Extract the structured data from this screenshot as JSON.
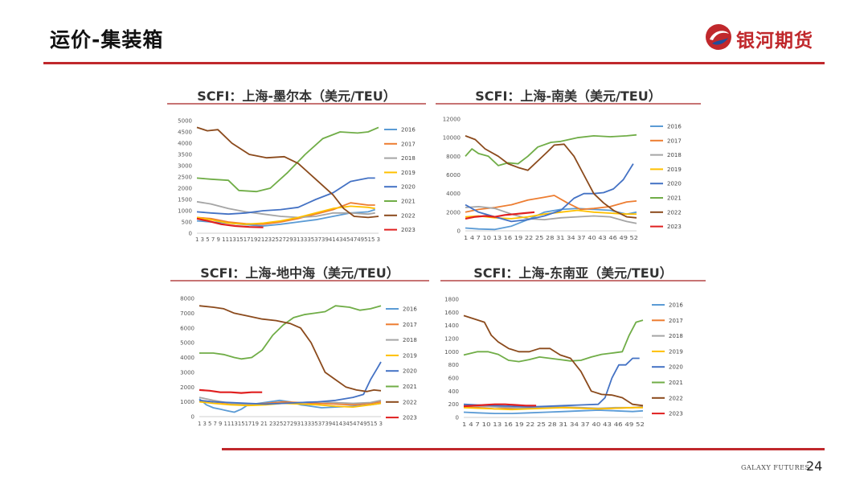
{
  "header": {
    "title": "运价-集装箱"
  },
  "logo": {
    "text": "银河期货"
  },
  "footer": {
    "brand": "GALAXY FUTURES",
    "page": "24"
  },
  "legend_colors": {
    "2016": "#5b9bd5",
    "2017": "#ed7d31",
    "2018": "#a5a5a5",
    "2019": "#ffc000",
    "2020": "#4472c4",
    "2021": "#70ad47",
    "2022": "#8b4a1c",
    "2023": "#e01f1f"
  },
  "chart_data": [
    {
      "type": "line",
      "title": "SCFI：上海-墨尔本（美元/TEU）",
      "ylim": [
        0,
        5000
      ],
      "yticks": [
        0,
        500,
        1000,
        1500,
        2000,
        2500,
        3000,
        3500,
        4000,
        4500,
        5000
      ],
      "x_range": [
        1,
        53
      ],
      "xtick_text": "1 3 5 7 9 1113151719212325272931333537394143454749515 3",
      "legend_position": "right",
      "series": [
        {
          "name": "2016",
          "x": [
            1,
            5,
            10,
            15,
            20,
            25,
            30,
            35,
            40,
            45,
            50,
            52
          ],
          "y": [
            550,
            500,
            450,
            380,
            320,
            400,
            500,
            600,
            750,
            900,
            950,
            1050
          ]
        },
        {
          "name": "2017",
          "x": [
            1,
            5,
            10,
            15,
            20,
            25,
            30,
            35,
            40,
            45,
            50,
            52
          ],
          "y": [
            700,
            650,
            500,
            420,
            400,
            500,
            650,
            850,
            1050,
            1350,
            1250,
            1250
          ]
        },
        {
          "name": "2018",
          "x": [
            1,
            5,
            10,
            15,
            20,
            25,
            30,
            35,
            40,
            45,
            50,
            52
          ],
          "y": [
            1400,
            1300,
            1100,
            950,
            850,
            750,
            700,
            750,
            900,
            900,
            850,
            900
          ]
        },
        {
          "name": "2019",
          "x": [
            1,
            5,
            10,
            15,
            20,
            25,
            30,
            35,
            40,
            45,
            50,
            52
          ],
          "y": [
            700,
            600,
            450,
            400,
            450,
            550,
            700,
            900,
            1100,
            1200,
            1150,
            1100
          ]
        },
        {
          "name": "2020",
          "x": [
            1,
            5,
            10,
            15,
            20,
            25,
            30,
            35,
            40,
            45,
            50,
            52
          ],
          "y": [
            950,
            900,
            850,
            900,
            1000,
            1050,
            1150,
            1500,
            1800,
            2300,
            2450,
            2450
          ]
        },
        {
          "name": "2021",
          "x": [
            1,
            5,
            10,
            13,
            18,
            22,
            27,
            32,
            37,
            42,
            47,
            50,
            53
          ],
          "y": [
            2450,
            2400,
            2350,
            1900,
            1850,
            2000,
            2700,
            3500,
            4200,
            4500,
            4450,
            4500,
            4700
          ]
        },
        {
          "name": "2022",
          "x": [
            1,
            4,
            7,
            11,
            16,
            21,
            26,
            30,
            35,
            40,
            43,
            46,
            50,
            53
          ],
          "y": [
            4700,
            4550,
            4600,
            4000,
            3500,
            3350,
            3400,
            3100,
            2400,
            1700,
            1100,
            750,
            700,
            750
          ]
        },
        {
          "name": "2023",
          "x": [
            1,
            4,
            8,
            12,
            16,
            20
          ],
          "y": [
            650,
            550,
            400,
            320,
            280,
            260
          ]
        }
      ]
    },
    {
      "type": "line",
      "title": "SCFI：上海-南美（美元/TEU）",
      "ylim": [
        0,
        12000
      ],
      "yticks": [
        0,
        2000,
        4000,
        6000,
        8000,
        10000,
        12000
      ],
      "x_range": [
        1,
        53
      ],
      "xtick_text": "1 4 7 10 13 16 19 22 25 28 31 34 37 40 43 46 49 52",
      "legend_position": "right",
      "series": [
        {
          "name": "2016",
          "x": [
            1,
            5,
            10,
            15,
            20,
            25,
            30,
            35,
            40,
            45,
            50,
            53
          ],
          "y": [
            300,
            200,
            150,
            500,
            1200,
            2000,
            2300,
            2400,
            2300,
            2200,
            1800,
            2000
          ]
        },
        {
          "name": "2017",
          "x": [
            1,
            5,
            10,
            15,
            20,
            25,
            28,
            32,
            36,
            40,
            45,
            50,
            53
          ],
          "y": [
            2000,
            2300,
            2500,
            2800,
            3300,
            3600,
            3800,
            3000,
            2300,
            2400,
            2600,
            3100,
            3200
          ]
        },
        {
          "name": "2018",
          "x": [
            1,
            5,
            10,
            15,
            20,
            25,
            30,
            35,
            40,
            45,
            50,
            53
          ],
          "y": [
            2500,
            2600,
            2400,
            1800,
            1300,
            1200,
            1400,
            1500,
            1600,
            1500,
            1000,
            800
          ]
        },
        {
          "name": "2019",
          "x": [
            1,
            5,
            10,
            15,
            20,
            25,
            30,
            35,
            40,
            45,
            50,
            53
          ],
          "y": [
            1500,
            1600,
            1400,
            1300,
            1500,
            1800,
            2000,
            2200,
            2000,
            1900,
            1800,
            1800
          ]
        },
        {
          "name": "2020",
          "x": [
            1,
            5,
            10,
            15,
            20,
            25,
            30,
            34,
            37,
            40,
            43,
            46,
            49,
            52
          ],
          "y": [
            2800,
            2000,
            1500,
            1000,
            1200,
            1600,
            2200,
            3500,
            4000,
            4000,
            4100,
            4500,
            5500,
            7200
          ]
        },
        {
          "name": "2021",
          "x": [
            1,
            3,
            5,
            8,
            11,
            14,
            17,
            20,
            23,
            27,
            30,
            35,
            40,
            45,
            50,
            53
          ],
          "y": [
            8000,
            8800,
            8300,
            8000,
            7000,
            7300,
            7200,
            8000,
            9000,
            9500,
            9600,
            10000,
            10200,
            10100,
            10200,
            10300
          ]
        },
        {
          "name": "2022",
          "x": [
            1,
            4,
            7,
            11,
            14,
            17,
            20,
            23,
            26,
            28,
            31,
            34,
            37,
            40,
            43,
            46,
            50,
            53
          ],
          "y": [
            10200,
            9800,
            8800,
            8000,
            7200,
            6800,
            6500,
            7500,
            8500,
            9200,
            9300,
            8000,
            6000,
            4000,
            3000,
            2200,
            1500,
            1400
          ]
        },
        {
          "name": "2023",
          "x": [
            1,
            4,
            7,
            10,
            13,
            16,
            19,
            22
          ],
          "y": [
            1300,
            1500,
            1600,
            1500,
            1700,
            1800,
            1900,
            2000
          ]
        }
      ]
    },
    {
      "type": "line",
      "title": "SCFI：上海-地中海（美元/TEU）",
      "ylim": [
        0,
        8000
      ],
      "yticks": [
        0,
        1000,
        2000,
        3000,
        4000,
        5000,
        6000,
        7000,
        8000
      ],
      "x_range": [
        1,
        53
      ],
      "xtick_text": "1 3 5 7 9 1113151719 21 2325272931333537394143454749515 3",
      "legend_position": "right",
      "series": [
        {
          "name": "2016",
          "x": [
            1,
            3,
            5,
            7,
            9,
            11,
            13,
            15,
            18,
            21,
            24,
            27,
            30,
            33,
            36,
            40,
            45,
            50,
            53
          ],
          "y": [
            1200,
            800,
            600,
            500,
            400,
            300,
            500,
            800,
            900,
            1000,
            1100,
            1000,
            800,
            700,
            600,
            650,
            700,
            800,
            900
          ]
        },
        {
          "name": "2017",
          "x": [
            1,
            5,
            10,
            15,
            20,
            25,
            30,
            35,
            40,
            45,
            50,
            53
          ],
          "y": [
            1100,
            1000,
            900,
            850,
            900,
            1000,
            950,
            900,
            850,
            800,
            900,
            1000
          ]
        },
        {
          "name": "2018",
          "x": [
            1,
            5,
            10,
            15,
            20,
            25,
            30,
            35,
            40,
            45,
            50,
            53
          ],
          "y": [
            1300,
            1100,
            900,
            800,
            850,
            900,
            950,
            1000,
            950,
            900,
            950,
            1100
          ]
        },
        {
          "name": "2019",
          "x": [
            1,
            5,
            10,
            15,
            20,
            25,
            30,
            35,
            40,
            45,
            50,
            53
          ],
          "y": [
            1000,
            900,
            800,
            750,
            800,
            900,
            850,
            800,
            700,
            650,
            800,
            900
          ]
        },
        {
          "name": "2020",
          "x": [
            1,
            5,
            10,
            15,
            20,
            25,
            30,
            35,
            40,
            45,
            48,
            50,
            52,
            53
          ],
          "y": [
            1100,
            1000,
            950,
            900,
            850,
            900,
            950,
            1000,
            1100,
            1300,
            1500,
            2500,
            3300,
            3700
          ]
        },
        {
          "name": "2021",
          "x": [
            1,
            5,
            8,
            11,
            13,
            16,
            19,
            22,
            25,
            28,
            31,
            34,
            37,
            40,
            44,
            47,
            50,
            53
          ],
          "y": [
            4300,
            4300,
            4200,
            4000,
            3900,
            4000,
            4500,
            5500,
            6200,
            6700,
            6900,
            7000,
            7100,
            7500,
            7400,
            7200,
            7300,
            7500
          ]
        },
        {
          "name": "2022",
          "x": [
            1,
            5,
            8,
            11,
            15,
            19,
            23,
            27,
            30,
            33,
            35,
            37,
            40,
            43,
            46,
            49,
            51,
            53
          ],
          "y": [
            7500,
            7400,
            7300,
            7000,
            6800,
            6600,
            6500,
            6300,
            6000,
            5000,
            4000,
            3000,
            2500,
            2000,
            1800,
            1700,
            1800,
            1750
          ]
        },
        {
          "name": "2023",
          "x": [
            1,
            4,
            7,
            10,
            13,
            16,
            19
          ],
          "y": [
            1800,
            1750,
            1650,
            1650,
            1600,
            1650,
            1650
          ]
        }
      ]
    },
    {
      "type": "line",
      "title": "SCFI：上海-东南亚（美元/TEU）",
      "ylim": [
        0,
        1800
      ],
      "yticks": [
        0,
        200,
        400,
        600,
        800,
        1000,
        1200,
        1400,
        1600,
        1800
      ],
      "x_range": [
        1,
        53
      ],
      "xtick_text": "1 4 7 10 13 16 19 22 25 28 31 34 37 40 43 46 49 52",
      "legend_position": "right",
      "series": [
        {
          "name": "2016",
          "x": [
            1,
            5,
            10,
            15,
            20,
            25,
            30,
            35,
            40,
            45,
            50,
            53
          ],
          "y": [
            80,
            70,
            60,
            60,
            70,
            80,
            90,
            100,
            110,
            100,
            90,
            100
          ]
        },
        {
          "name": "2017",
          "x": [
            1,
            5,
            10,
            15,
            20,
            25,
            30,
            35,
            40,
            45,
            50,
            53
          ],
          "y": [
            160,
            150,
            130,
            140,
            150,
            160,
            150,
            140,
            130,
            140,
            150,
            160
          ]
        },
        {
          "name": "2018",
          "x": [
            1,
            5,
            10,
            15,
            20,
            25,
            30,
            35,
            40,
            45,
            50,
            53
          ],
          "y": [
            180,
            170,
            160,
            150,
            140,
            150,
            160,
            150,
            140,
            150,
            150,
            160
          ]
        },
        {
          "name": "2019",
          "x": [
            1,
            5,
            10,
            15,
            20,
            25,
            30,
            35,
            40,
            45,
            50,
            53
          ],
          "y": [
            150,
            140,
            130,
            120,
            130,
            140,
            150,
            140,
            130,
            140,
            150,
            150
          ]
        },
        {
          "name": "2020",
          "x": [
            1,
            5,
            10,
            15,
            20,
            25,
            30,
            35,
            40,
            42,
            44,
            46,
            48,
            50,
            52
          ],
          "y": [
            200,
            190,
            180,
            170,
            160,
            170,
            180,
            190,
            200,
            300,
            600,
            800,
            800,
            900,
            900
          ]
        },
        {
          "name": "2021",
          "x": [
            1,
            5,
            8,
            11,
            14,
            17,
            20,
            23,
            26,
            29,
            32,
            35,
            38,
            41,
            44,
            47,
            49,
            51,
            53
          ],
          "y": [
            950,
            1000,
            1000,
            960,
            870,
            850,
            880,
            920,
            900,
            880,
            860,
            870,
            920,
            960,
            980,
            1000,
            1250,
            1450,
            1480
          ]
        },
        {
          "name": "2022",
          "x": [
            1,
            4,
            7,
            9,
            11,
            14,
            17,
            20,
            23,
            26,
            29,
            32,
            35,
            38,
            41,
            44,
            47,
            50,
            53
          ],
          "y": [
            1550,
            1500,
            1450,
            1250,
            1150,
            1050,
            1000,
            1000,
            1050,
            1050,
            950,
            900,
            700,
            400,
            350,
            340,
            300,
            200,
            180
          ]
        },
        {
          "name": "2023",
          "x": [
            1,
            4,
            7,
            10,
            13,
            16,
            19,
            22
          ],
          "y": [
            170,
            180,
            190,
            200,
            200,
            190,
            180,
            180
          ]
        }
      ]
    }
  ]
}
